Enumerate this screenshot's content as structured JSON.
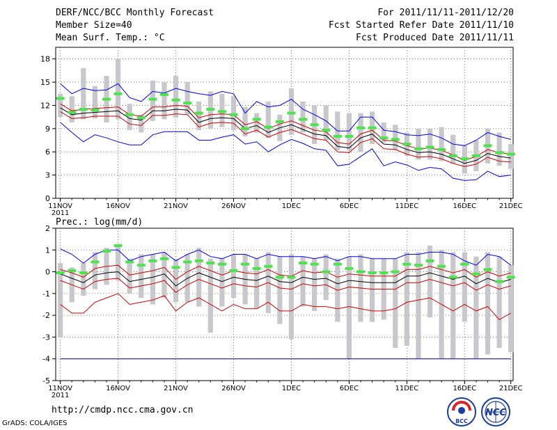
{
  "header": {
    "title": "DERF/NCC/BCC Monthly Forecast",
    "member_size": "Member Size=40",
    "variable": "Mean Surf. Temp.: °C",
    "period": "For 2011/11/11-2011/12/20",
    "start_date": "Fcst Started Refer Date 2011/11/10",
    "produced_date": "Fcst Produced Date 2011/11/11"
  },
  "footer": {
    "url": "http://cmdp.ncc.cma.gov.cn",
    "grads_credit": "GrADS: COLA/IGES",
    "logo_bcc_text": "BCC",
    "logo_ncc_text": "NCC"
  },
  "colors": {
    "box": "#c8c8cc",
    "forecast": "#4ee24e",
    "envelope": "#0000ee",
    "spread": "#cc0000",
    "mean": "#000000",
    "baseline": "#00008b"
  },
  "chart_data": [
    {
      "type": "box",
      "title": "Mean Surf. Temp.: °C",
      "ylabel": "°C",
      "ylim": [
        0,
        19.5
      ],
      "yticks": [
        0,
        3,
        6,
        9,
        12,
        15,
        18
      ],
      "ytick_labels": [
        "0",
        "3",
        "6",
        "9",
        "12",
        "15",
        "18"
      ],
      "xlim": [
        10.6,
        50.2
      ],
      "xticks": [
        11,
        16,
        21,
        26,
        31,
        36,
        41,
        46,
        50
      ],
      "xtick_labels": [
        "11NOV",
        "16NOV",
        "21NOV",
        "26NOV",
        "1DEC",
        "6DEC",
        "11DEC",
        "16DEC",
        "21DEC"
      ],
      "xtick_sub_labels": [
        "2011",
        "",
        "",
        "",
        "",
        "",
        "",
        "",
        ""
      ],
      "days": [
        11,
        12,
        13,
        14,
        15,
        16,
        17,
        18,
        19,
        20,
        21,
        22,
        23,
        24,
        25,
        26,
        27,
        28,
        29,
        30,
        31,
        32,
        33,
        34,
        35,
        36,
        37,
        38,
        39,
        40,
        41,
        42,
        43,
        44,
        45,
        46,
        47,
        48,
        49,
        50
      ],
      "box_low": [
        10.5,
        9.8,
        10.2,
        10.3,
        9.8,
        10.2,
        8.8,
        8.5,
        10.0,
        10.2,
        10.4,
        10.8,
        8.8,
        9.0,
        9.2,
        8.8,
        8.0,
        8.5,
        7.8,
        7.4,
        8.2,
        8.5,
        7.0,
        7.5,
        6.2,
        6.2,
        6.0,
        7.0,
        7.2,
        6.2,
        5.5,
        5.0,
        5.0,
        4.8,
        4.5,
        3.2,
        3.5,
        4.5,
        4.2,
        3.8
      ],
      "box_high": [
        13.5,
        13.2,
        16.8,
        14.5,
        15.8,
        18.0,
        12.2,
        10.8,
        15.2,
        15.0,
        15.8,
        15.0,
        12.5,
        13.8,
        13.5,
        13.2,
        11.8,
        11.0,
        12.5,
        10.8,
        14.2,
        12.5,
        12.0,
        12.0,
        11.2,
        11.0,
        11.0,
        11.2,
        9.8,
        9.5,
        8.5,
        9.0,
        9.0,
        9.2,
        8.2,
        6.8,
        7.5,
        9.0,
        8.5,
        7.0
      ],
      "forecast_bars": [
        12.9,
        11.1,
        11.5,
        11.4,
        12.8,
        13.5,
        10.8,
        10.4,
        12.8,
        13.4,
        12.7,
        12.3,
        11.0,
        11.5,
        11.2,
        10.8,
        9.0,
        10.2,
        9.2,
        9.9,
        11.0,
        10.2,
        9.5,
        8.8,
        8.0,
        8.0,
        9.1,
        9.1,
        7.8,
        7.6,
        7.0,
        6.4,
        6.6,
        6.3,
        5.5,
        5.1,
        5.5,
        6.8,
        5.9,
        5.7
      ],
      "series": [
        {
          "name": "upper envelope",
          "color": "#0000ee",
          "values": [
            14.8,
            13.5,
            14.2,
            13.9,
            14.0,
            14.8,
            13.0,
            12.5,
            13.8,
            13.6,
            14.2,
            13.8,
            13.5,
            13.3,
            13.8,
            13.5,
            11.0,
            12.5,
            11.8,
            12.0,
            12.8,
            11.5,
            10.8,
            10.0,
            8.7,
            8.7,
            10.5,
            10.5,
            8.8,
            8.6,
            8.2,
            8.1,
            8.3,
            7.8,
            7.0,
            6.8,
            7.5,
            8.5,
            8.0,
            7.6
          ]
        },
        {
          "name": "upper spread",
          "color": "#cc0000",
          "values": [
            12.2,
            11.3,
            11.5,
            11.6,
            11.7,
            11.8,
            10.8,
            10.6,
            11.8,
            11.8,
            12.0,
            11.9,
            10.4,
            10.8,
            10.9,
            10.8,
            9.5,
            9.9,
            9.0,
            9.6,
            10.0,
            9.4,
            8.8,
            8.6,
            7.2,
            7.0,
            8.3,
            8.8,
            7.5,
            7.4,
            6.8,
            6.4,
            6.5,
            6.2,
            5.6,
            4.9,
            5.4,
            6.3,
            5.9,
            5.7
          ]
        },
        {
          "name": "ensemble mean",
          "color": "#000000",
          "values": [
            11.7,
            10.8,
            11.0,
            11.1,
            11.2,
            11.3,
            10.3,
            10.1,
            11.3,
            11.3,
            11.5,
            11.4,
            9.8,
            10.3,
            10.4,
            10.3,
            9.0,
            9.4,
            8.5,
            9.1,
            9.5,
            8.9,
            8.3,
            8.1,
            6.7,
            6.5,
            7.8,
            8.3,
            7.0,
            6.9,
            6.3,
            5.9,
            6.0,
            5.7,
            5.1,
            4.5,
            4.9,
            5.8,
            5.4,
            5.2
          ]
        },
        {
          "name": "lower spread",
          "color": "#cc0000",
          "values": [
            11.2,
            10.3,
            10.4,
            10.6,
            10.6,
            10.6,
            9.6,
            9.4,
            10.7,
            10.7,
            10.9,
            10.8,
            9.2,
            9.7,
            9.8,
            9.7,
            8.3,
            8.8,
            7.9,
            8.5,
            8.9,
            8.3,
            7.7,
            7.5,
            6.0,
            5.9,
            7.2,
            7.7,
            6.4,
            6.3,
            5.7,
            5.3,
            5.4,
            5.1,
            4.5,
            4.1,
            4.4,
            5.3,
            4.8,
            4.7
          ]
        },
        {
          "name": "lower envelope",
          "color": "#0000ee",
          "values": [
            9.8,
            8.5,
            7.3,
            8.2,
            7.8,
            7.3,
            6.9,
            6.9,
            8.2,
            8.6,
            8.6,
            8.6,
            7.5,
            7.5,
            7.9,
            8.2,
            7.0,
            7.3,
            6.0,
            6.9,
            7.6,
            7.1,
            6.4,
            6.2,
            4.2,
            4.4,
            5.4,
            6.4,
            4.2,
            4.7,
            4.3,
            3.6,
            4.0,
            3.8,
            2.6,
            2.3,
            2.4,
            3.5,
            2.8,
            3.0
          ]
        }
      ]
    },
    {
      "type": "box",
      "title": "Prec.: log(mm/d)",
      "ylabel": "log(mm/d)",
      "ylim": [
        -5,
        2
      ],
      "yticks": [
        -5,
        -4,
        -3,
        -2,
        -1,
        0,
        1,
        2
      ],
      "ytick_labels": [
        "-5",
        "-4",
        "-3",
        "-2",
        "-1",
        "0",
        "1",
        "2"
      ],
      "xlim": [
        10.6,
        50.2
      ],
      "xticks": [
        11,
        16,
        21,
        26,
        31,
        36,
        41,
        46,
        50
      ],
      "xtick_labels": [
        "11NOV",
        "16NOV",
        "21NOV",
        "26NOV",
        "1DEC",
        "6DEC",
        "11DEC",
        "16DEC",
        "21DEC"
      ],
      "xtick_sub_labels": [
        "2011",
        "",
        "",
        "",
        "",
        "",
        "",
        "",
        ""
      ],
      "days": [
        11,
        12,
        13,
        14,
        15,
        16,
        17,
        18,
        19,
        20,
        21,
        22,
        23,
        24,
        25,
        26,
        27,
        28,
        29,
        30,
        31,
        32,
        33,
        34,
        35,
        36,
        37,
        38,
        39,
        40,
        41,
        42,
        43,
        44,
        45,
        46,
        47,
        48,
        49,
        50
      ],
      "box_low": [
        -3.0,
        -1.4,
        -1.1,
        -0.8,
        -0.6,
        -0.4,
        -1.0,
        -1.2,
        -1.5,
        -1.2,
        -1.4,
        -1.4,
        -1.6,
        -2.8,
        -1.6,
        -1.2,
        -1.5,
        -1.7,
        -1.9,
        -2.4,
        -3.1,
        -1.6,
        -1.8,
        -1.3,
        -2.3,
        -4.0,
        -2.3,
        -2.3,
        -2.2,
        -3.5,
        -3.4,
        -4.0,
        -2.1,
        -4.0,
        -4.0,
        -2.3,
        -4.0,
        -3.8,
        -3.5,
        -3.7
      ],
      "box_high": [
        0.4,
        0.2,
        0.4,
        0.9,
        1.1,
        1.2,
        0.6,
        0.8,
        0.8,
        0.9,
        0.6,
        0.8,
        1.1,
        0.6,
        0.6,
        0.8,
        0.8,
        0.6,
        0.9,
        0.7,
        0.8,
        0.7,
        0.6,
        0.8,
        0.6,
        0.7,
        0.8,
        0.6,
        0.6,
        0.6,
        0.9,
        0.9,
        1.2,
        1.0,
        0.9,
        0.9,
        0.7,
        0.9,
        0.7,
        0.3
      ],
      "forecast_bars": [
        -0.05,
        0.05,
        -0.05,
        0.45,
        0.95,
        1.2,
        0.45,
        0.3,
        0.5,
        0.6,
        0.2,
        0.45,
        0.5,
        0.4,
        0.35,
        0.05,
        0.35,
        0.15,
        0.25,
        -0.25,
        -0.25,
        0.4,
        0.35,
        0.0,
        0.35,
        0.15,
        0.0,
        -0.05,
        -0.05,
        0.0,
        0.35,
        0.3,
        0.5,
        0.25,
        -0.25,
        0.35,
        -0.1,
        0.1,
        -0.45,
        -0.25
      ],
      "series": [
        {
          "name": "upper envelope",
          "color": "#0000ee",
          "values": [
            1.05,
            0.8,
            0.4,
            0.8,
            1.0,
            1.0,
            0.5,
            0.7,
            0.8,
            0.9,
            0.5,
            0.8,
            1.0,
            0.7,
            0.6,
            0.8,
            0.8,
            0.6,
            0.8,
            0.7,
            0.7,
            0.7,
            0.6,
            0.7,
            0.5,
            0.7,
            0.7,
            0.6,
            0.6,
            0.6,
            0.8,
            0.8,
            0.9,
            0.9,
            0.8,
            0.5,
            0.3,
            0.8,
            0.7,
            0.3
          ]
        },
        {
          "name": "upper spread",
          "color": "#cc0000",
          "values": [
            0.1,
            -0.05,
            -0.25,
            0.15,
            0.25,
            0.3,
            -0.15,
            -0.05,
            0.05,
            0.2,
            -0.35,
            0.0,
            0.25,
            0.05,
            -0.15,
            0.05,
            -0.05,
            -0.1,
            0.1,
            -0.15,
            -0.2,
            0.05,
            -0.05,
            0.0,
            -0.25,
            -0.1,
            -0.15,
            -0.2,
            -0.2,
            -0.2,
            0.1,
            0.1,
            0.25,
            0.1,
            -0.05,
            0.1,
            -0.25,
            0.0,
            -0.2,
            -0.05
          ]
        },
        {
          "name": "ensemble mean",
          "color": "#000000",
          "values": [
            -0.1,
            -0.3,
            -0.5,
            -0.15,
            -0.05,
            0.0,
            -0.45,
            -0.35,
            -0.25,
            -0.1,
            -0.65,
            -0.3,
            -0.05,
            -0.25,
            -0.45,
            -0.25,
            -0.35,
            -0.4,
            -0.2,
            -0.45,
            -0.5,
            -0.25,
            -0.35,
            -0.3,
            -0.55,
            -0.4,
            -0.45,
            -0.5,
            -0.5,
            -0.5,
            -0.2,
            -0.2,
            -0.05,
            -0.2,
            -0.35,
            -0.2,
            -0.55,
            -0.3,
            -0.5,
            -0.35
          ]
        },
        {
          "name": "lower spread",
          "color": "#cc0000",
          "values": [
            -0.4,
            -0.6,
            -0.8,
            -0.45,
            -0.35,
            -0.3,
            -0.75,
            -0.65,
            -0.55,
            -0.4,
            -0.95,
            -0.6,
            -0.35,
            -0.55,
            -0.75,
            -0.55,
            -0.65,
            -0.7,
            -0.5,
            -0.75,
            -0.8,
            -0.55,
            -0.65,
            -0.6,
            -0.85,
            -0.7,
            -0.75,
            -0.8,
            -0.8,
            -0.8,
            -0.5,
            -0.5,
            -0.35,
            -0.5,
            -0.65,
            -0.5,
            -0.85,
            -0.6,
            -0.8,
            -0.65
          ]
        },
        {
          "name": "lower envelope",
          "color": "#cc0000",
          "values": [
            -1.5,
            -1.9,
            -1.9,
            -1.4,
            -1.2,
            -1.0,
            -1.5,
            -1.4,
            -1.3,
            -1.1,
            -1.8,
            -1.4,
            -1.2,
            -1.5,
            -1.8,
            -1.5,
            -1.7,
            -1.7,
            -1.4,
            -1.8,
            -1.8,
            -1.5,
            -1.6,
            -1.6,
            -1.7,
            -1.6,
            -1.7,
            -1.8,
            -1.8,
            -1.7,
            -1.4,
            -1.3,
            -1.2,
            -1.5,
            -1.8,
            -1.5,
            -1.8,
            -1.6,
            -2.2,
            -1.9
          ]
        },
        {
          "name": "baseline",
          "color": "#00008b",
          "values": [
            -4,
            -4,
            -4,
            -4,
            -4,
            -4,
            -4,
            -4,
            -4,
            -4,
            -4,
            -4,
            -4,
            -4,
            -4,
            -4,
            -4,
            -4,
            -4,
            -4,
            -4,
            -4,
            -4,
            -4,
            -4,
            -4,
            -4,
            -4,
            -4,
            -4,
            -4,
            -4,
            -4,
            -4,
            -4,
            -4,
            -4,
            -4,
            -4,
            -4
          ]
        }
      ]
    }
  ]
}
